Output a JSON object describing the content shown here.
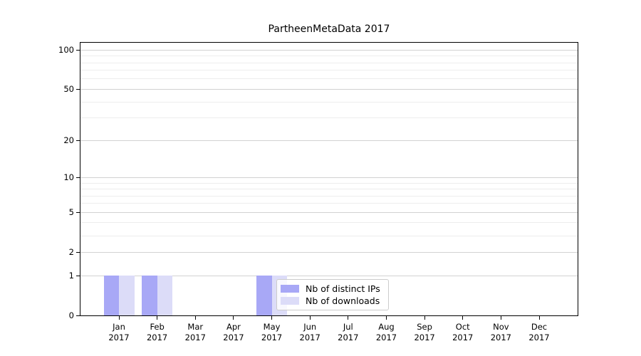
{
  "chart": {
    "title": "PartheenMetaData 2017",
    "chart_data": {
      "type": "bar",
      "categories": [
        "Jan 2017",
        "Feb 2017",
        "Mar 2017",
        "Apr 2017",
        "May 2017",
        "Jun 2017",
        "Jul 2017",
        "Aug 2017",
        "Sep 2017",
        "Oct 2017",
        "Nov 2017",
        "Dec 2017"
      ],
      "series": [
        {
          "name": "Nb of distinct IPs",
          "color": "#a8a8f6",
          "values": [
            1,
            1,
            0,
            0,
            1,
            0,
            0,
            0,
            0,
            0,
            0,
            0
          ]
        },
        {
          "name": "Nb of downloads",
          "color": "#dcdcf8",
          "values": [
            1,
            1,
            0,
            0,
            1,
            0,
            0,
            0,
            0,
            0,
            0,
            0
          ]
        }
      ],
      "title": "PartheenMetaData 2017",
      "xlabel": "",
      "ylabel": "",
      "yscale": "log1p",
      "ylim": [
        0,
        114
      ],
      "yticks_major": [
        0,
        1,
        2,
        5,
        10,
        20,
        50,
        100
      ],
      "yticks_minor": [
        3,
        4,
        6,
        7,
        8,
        9,
        30,
        40,
        60,
        70,
        80,
        90
      ],
      "grid": "both-horizontal",
      "legend_position": "inside-bottom-center"
    }
  },
  "colors": {
    "bar_distinct_ips": "#a8a8f6",
    "bar_downloads": "#dcdcf8",
    "grid_major": "#d2d2d2",
    "grid_minor": "#ededed",
    "spine": "#000000",
    "legend_border": "#cccccc",
    "legend_background": "rgba(255,255,255,0.8)"
  }
}
